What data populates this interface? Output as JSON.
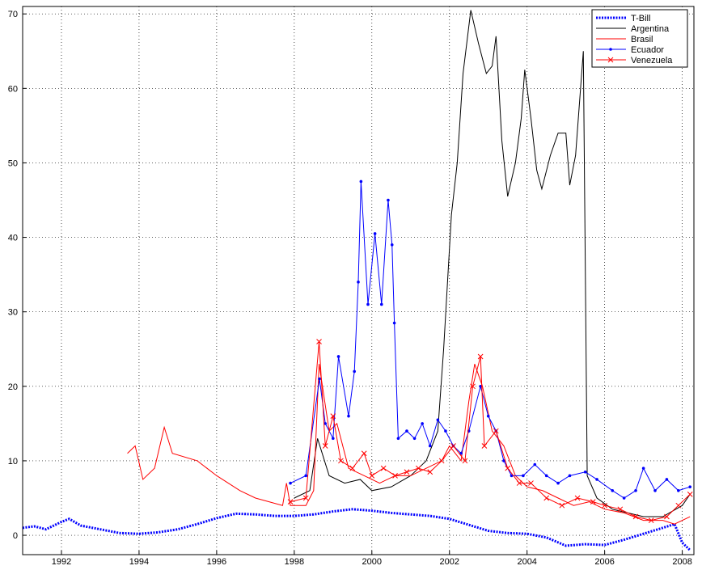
{
  "chart_data": {
    "type": "line",
    "xlim": [
      1991,
      2008.3
    ],
    "ylim": [
      -2.6,
      71
    ],
    "xticks": [
      1992,
      1994,
      1996,
      1998,
      2000,
      2002,
      2004,
      2006,
      2008
    ],
    "yticks": [
      0,
      10,
      20,
      30,
      40,
      50,
      60,
      70
    ],
    "grid": true,
    "legend": "upper right",
    "series": [
      {
        "name": "T-Bill",
        "color": "#0000ff",
        "style": "dotted",
        "marker": "none",
        "x": [
          1991.0,
          1991.3,
          1991.6,
          1992.0,
          1992.2,
          1992.5,
          1993.0,
          1993.5,
          1994.0,
          1994.5,
          1995.0,
          1995.5,
          1996.0,
          1996.5,
          1997.0,
          1997.5,
          1998.0,
          1998.5,
          1999.0,
          1999.5,
          2000.0,
          2000.5,
          2001.0,
          2001.5,
          2002.0,
          2002.5,
          2003.0,
          2003.5,
          2004.0,
          2004.5,
          2005.0,
          2005.5,
          2006.0,
          2006.5,
          2007.0,
          2007.5,
          2007.8,
          2008.0,
          2008.2
        ],
        "values": [
          1.0,
          1.2,
          0.8,
          1.8,
          2.2,
          1.3,
          0.8,
          0.3,
          0.2,
          0.4,
          0.8,
          1.5,
          2.3,
          2.9,
          2.8,
          2.6,
          2.6,
          2.8,
          3.2,
          3.5,
          3.3,
          3.0,
          2.8,
          2.6,
          2.2,
          1.4,
          0.6,
          0.3,
          0.2,
          -0.3,
          -1.4,
          -1.2,
          -1.3,
          -0.6,
          0.2,
          1.0,
          1.5,
          -1.0,
          -2.0
        ]
      },
      {
        "name": "Argentina",
        "color": "#000000",
        "style": "solid",
        "marker": "none",
        "x": [
          1998.0,
          1998.4,
          1998.6,
          1998.9,
          1999.3,
          1999.7,
          2000.0,
          2000.5,
          2001.0,
          2001.4,
          2001.7,
          2001.85,
          2002.05,
          2002.2,
          2002.35,
          2002.55,
          2002.75,
          2002.95,
          2003.1,
          2003.2,
          2003.35,
          2003.5,
          2003.7,
          2003.85,
          2003.94,
          2004.1,
          2004.25,
          2004.38,
          2004.6,
          2004.8,
          2005.0,
          2005.1,
          2005.25,
          2005.45,
          2005.55,
          2005.8,
          2006.2,
          2006.6,
          2007.0,
          2007.5,
          2008.0,
          2008.2
        ],
        "values": [
          5.0,
          6.0,
          13.0,
          8.0,
          7.0,
          7.5,
          6.0,
          6.5,
          8.0,
          10.0,
          14.0,
          25.0,
          43.0,
          50.0,
          62.0,
          70.5,
          66.0,
          62.0,
          63.0,
          67.0,
          53.0,
          45.5,
          50.0,
          56.0,
          62.5,
          56.0,
          49.0,
          46.5,
          51.0,
          54.0,
          54.0,
          47.0,
          51.0,
          65.0,
          8.0,
          5.0,
          3.5,
          3.0,
          2.5,
          2.5,
          4.0,
          5.5
        ]
      },
      {
        "name": "Brasil",
        "color": "#ff0000",
        "style": "solid",
        "marker": "none",
        "x": [
          1993.7,
          1993.9,
          1994.1,
          1994.4,
          1994.65,
          1994.86,
          1995.5,
          1996.0,
          1996.6,
          1997.0,
          1997.7,
          1997.8,
          1997.9,
          1998.3,
          1998.5,
          1998.64,
          1998.9,
          1999.1,
          1999.4,
          1999.8,
          2000.2,
          2000.6,
          2001.0,
          2001.4,
          2001.8,
          2002.0,
          2002.3,
          2002.5,
          2002.65,
          2002.85,
          2003.1,
          2003.4,
          2003.7,
          2004.0,
          2004.4,
          2004.8,
          2005.2,
          2005.6,
          2006.0,
          2006.5,
          2007.0,
          2007.5,
          2007.8,
          2008.2
        ],
        "values": [
          11.0,
          12.0,
          7.5,
          9.0,
          14.5,
          11.0,
          10.0,
          8.0,
          6.0,
          5.0,
          4.0,
          7.0,
          4.0,
          4.0,
          6.0,
          23.0,
          14.0,
          15.0,
          9.0,
          8.0,
          7.0,
          8.0,
          8.0,
          9.0,
          10.0,
          12.0,
          10.0,
          18.0,
          23.0,
          20.0,
          14.0,
          12.0,
          8.0,
          6.5,
          6.0,
          5.0,
          4.0,
          4.5,
          3.5,
          3.0,
          2.0,
          2.0,
          1.5,
          2.5
        ]
      },
      {
        "name": "Ecuador",
        "color": "#0000ff",
        "style": "solid",
        "marker": "dot",
        "x": [
          1997.9,
          1998.3,
          1998.65,
          1998.8,
          1999.0,
          1999.14,
          1999.4,
          1999.55,
          1999.65,
          1999.72,
          1999.9,
          2000.08,
          2000.25,
          2000.42,
          2000.52,
          2000.58,
          2000.68,
          2000.9,
          2001.1,
          2001.3,
          2001.5,
          2001.7,
          2001.9,
          2002.1,
          2002.3,
          2002.5,
          2002.8,
          2003.0,
          2003.2,
          2003.4,
          2003.6,
          2003.9,
          2004.2,
          2004.5,
          2004.8,
          2005.1,
          2005.5,
          2005.8,
          2006.2,
          2006.5,
          2006.8,
          2007.0,
          2007.3,
          2007.6,
          2007.9,
          2008.2
        ],
        "values": [
          7.0,
          8.0,
          21.0,
          15.0,
          13.0,
          24.0,
          16.0,
          22.0,
          34.0,
          47.5,
          31.0,
          40.5,
          31.0,
          45.0,
          39.0,
          28.5,
          13.0,
          14.0,
          13.0,
          15.0,
          12.0,
          15.5,
          14.0,
          12.0,
          11.0,
          14.0,
          20.0,
          16.0,
          14.0,
          10.0,
          8.0,
          8.0,
          9.5,
          8.0,
          7.0,
          8.0,
          8.5,
          7.5,
          6.0,
          5.0,
          6.0,
          9.0,
          6.0,
          7.5,
          6.0,
          6.5
        ]
      },
      {
        "name": "Venezuela",
        "color": "#ff0000",
        "style": "solid",
        "marker": "x",
        "x": [
          1997.9,
          1998.3,
          1998.64,
          1998.8,
          1999.0,
          1999.2,
          1999.5,
          1999.8,
          2000.0,
          2000.3,
          2000.6,
          2000.9,
          2001.2,
          2001.5,
          2001.8,
          2002.1,
          2002.4,
          2002.6,
          2002.8,
          2002.9,
          2003.2,
          2003.5,
          2003.8,
          2004.1,
          2004.5,
          2004.9,
          2005.3,
          2005.7,
          2006.0,
          2006.4,
          2006.8,
          2007.2,
          2007.6,
          2007.9,
          2008.2
        ],
        "values": [
          4.5,
          5.0,
          26.0,
          12.0,
          16.0,
          10.0,
          9.0,
          11.0,
          8.0,
          9.0,
          8.0,
          8.5,
          9.0,
          8.5,
          10.0,
          12.0,
          10.0,
          20.0,
          24.0,
          12.0,
          14.0,
          9.0,
          7.0,
          7.0,
          5.0,
          4.0,
          5.0,
          4.5,
          4.0,
          3.5,
          2.5,
          2.0,
          2.5,
          4.0,
          5.5
        ]
      }
    ]
  }
}
